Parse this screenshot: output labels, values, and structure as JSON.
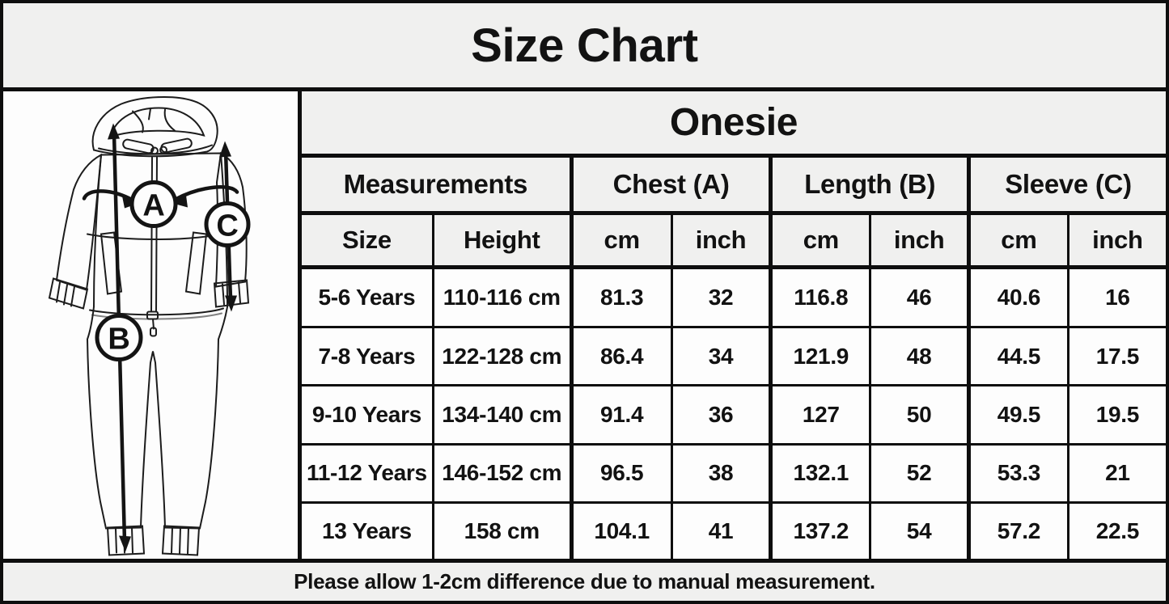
{
  "title": "Size Chart",
  "product": "Onesie",
  "table": {
    "group_headers": [
      {
        "label": "Measurements",
        "span": 2
      },
      {
        "label": "Chest (A)",
        "span": 2
      },
      {
        "label": "Length (B)",
        "span": 2
      },
      {
        "label": "Sleeve (C)",
        "span": 2
      }
    ],
    "sub_headers": [
      "Size",
      "Height",
      "cm",
      "inch",
      "cm",
      "inch",
      "cm",
      "inch"
    ],
    "rows": [
      [
        "5-6 Years",
        "110-116 cm",
        "81.3",
        "32",
        "116.8",
        "46",
        "40.6",
        "16"
      ],
      [
        "7-8 Years",
        "122-128 cm",
        "86.4",
        "34",
        "121.9",
        "48",
        "44.5",
        "17.5"
      ],
      [
        "9-10 Years",
        "134-140 cm",
        "91.4",
        "36",
        "127",
        "50",
        "49.5",
        "19.5"
      ],
      [
        "11-12 Years",
        "146-152 cm",
        "96.5",
        "38",
        "132.1",
        "52",
        "53.3",
        "21"
      ],
      [
        "13 Years",
        "158 cm",
        "104.1",
        "41",
        "137.2",
        "54",
        "57.2",
        "22.5"
      ]
    ]
  },
  "diagram": {
    "labels": {
      "chest": "A",
      "length": "B",
      "sleeve": "C"
    }
  },
  "footer_note": "Please allow 1-2cm difference due to manual measurement.",
  "colors": {
    "band_bg": "#f0f0ef",
    "cell_bg": "#fdfdfd",
    "border": "#0e0e0e",
    "text": "#121212"
  }
}
